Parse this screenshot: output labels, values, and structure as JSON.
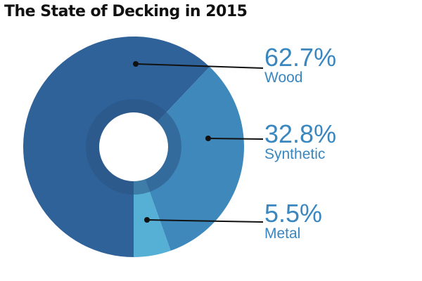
{
  "chart_data": {
    "type": "pie",
    "title": "The State of Decking in 2015",
    "variant": "donut",
    "unit": "%",
    "series": [
      {
        "name": "Wood",
        "value": 62.7,
        "label": "62.7%",
        "color": "#2f6299"
      },
      {
        "name": "Synthetic",
        "value": 32.8,
        "label": "32.8%",
        "color": "#3f88bb"
      },
      {
        "name": "Metal",
        "value": 5.5,
        "label": "5.5%",
        "color": "#56b0d6"
      }
    ],
    "colors": {
      "inner_ring": "#2a5484",
      "label_text": "#3a86bf",
      "leader_line": "#111111"
    },
    "legend": "none",
    "grid": false
  }
}
